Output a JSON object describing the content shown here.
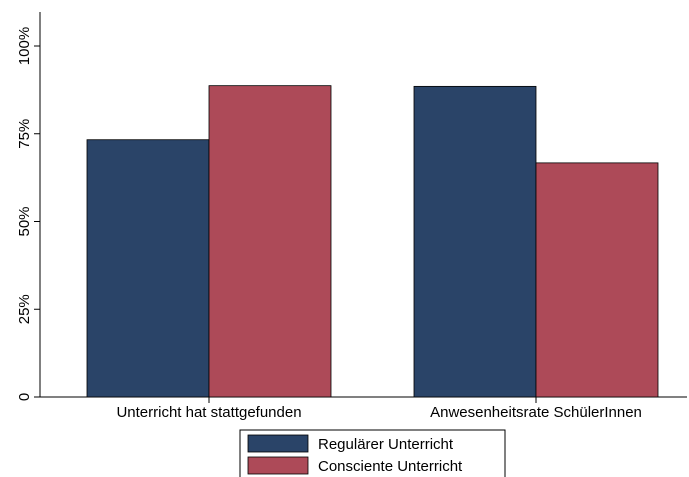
{
  "chart_data": {
    "type": "bar",
    "title": "",
    "xlabel": "",
    "ylabel": "",
    "categories": [
      "Unterricht hat stattgefunden",
      "Anwesenheitsrate SchülerInnen"
    ],
    "series": [
      {
        "name": "Regulärer Unterricht",
        "values": [
          73.3,
          88.5
        ],
        "color": "#2a4468"
      },
      {
        "name": "Consciente Unterricht",
        "values": [
          88.7,
          66.7
        ],
        "color": "#ad4a58"
      }
    ],
    "ylim": [
      0,
      100
    ],
    "yticks": [
      0,
      25,
      50,
      75,
      100
    ],
    "ytick_labels": [
      "0",
      "25%",
      "50%",
      "75%",
      "100%"
    ],
    "grid": false,
    "legend_position": "bottom"
  }
}
